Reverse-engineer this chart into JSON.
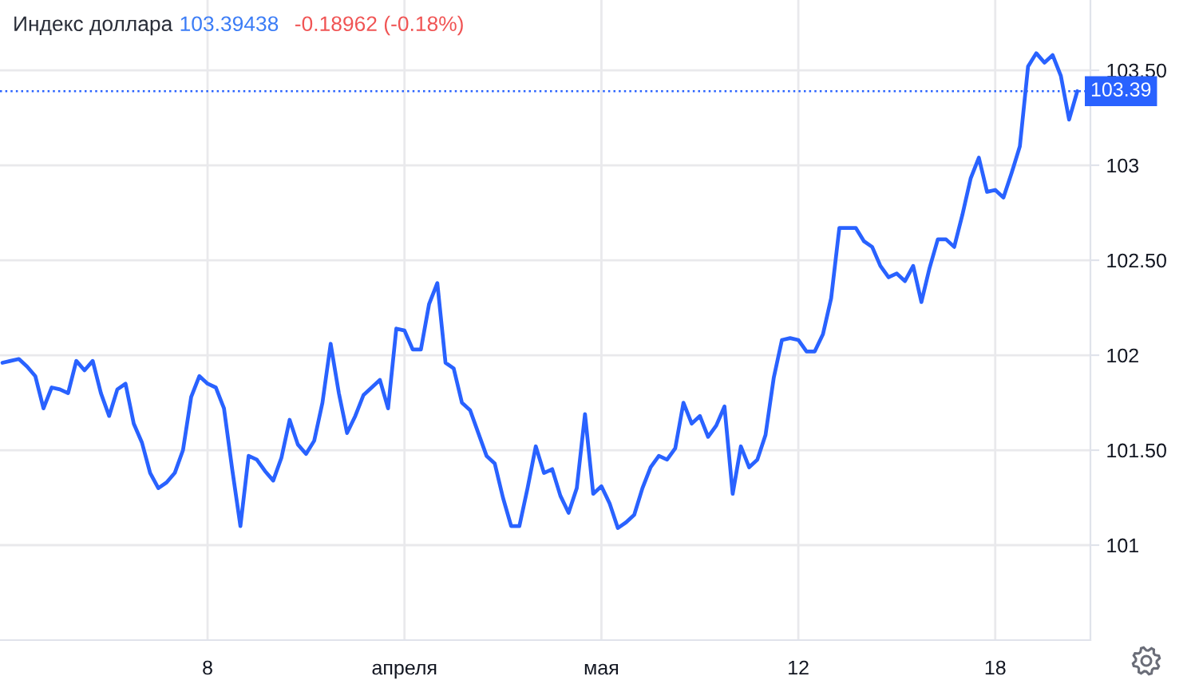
{
  "chart_data": {
    "type": "line",
    "title": "Индекс доллара",
    "annotations": [
      "103.39438",
      "-0.18962 (-0.18%)"
    ],
    "categories": [
      null,
      null,
      null,
      null,
      null,
      null,
      null,
      null,
      null,
      null,
      null,
      null,
      null,
      null,
      null,
      null,
      null,
      null,
      null,
      null,
      null,
      null,
      null,
      null,
      null,
      "8",
      null,
      null,
      null,
      null,
      null,
      null,
      null,
      null,
      null,
      null,
      null,
      null,
      null,
      null,
      null,
      null,
      null,
      null,
      null,
      null,
      null,
      null,
      null,
      "апреля",
      null,
      null,
      null,
      null,
      null,
      null,
      null,
      null,
      null,
      null,
      null,
      null,
      null,
      null,
      null,
      null,
      null,
      null,
      null,
      null,
      null,
      null,
      null,
      "мая",
      null,
      null,
      null,
      null,
      null,
      null,
      null,
      null,
      null,
      null,
      null,
      null,
      null,
      null,
      null,
      null,
      null,
      null,
      null,
      null,
      null,
      null,
      null,
      "12",
      null,
      null,
      null,
      null,
      null,
      null,
      null,
      null,
      null,
      null,
      null,
      null,
      null,
      null,
      null,
      null,
      null,
      null,
      null,
      null,
      null,
      null,
      null,
      "18",
      null,
      null,
      null,
      null,
      null,
      null,
      null,
      null,
      null,
      null
    ],
    "series": [
      {
        "color": "#2962ff",
        "values": [
          101.96,
          101.97,
          101.98,
          101.94,
          101.89,
          101.72,
          101.83,
          101.82,
          101.8,
          101.97,
          101.92,
          101.97,
          101.8,
          101.68,
          101.82,
          101.85,
          101.64,
          101.54,
          101.38,
          101.3,
          101.33,
          101.38,
          101.5,
          101.78,
          101.89,
          101.85,
          101.83,
          101.72,
          101.4,
          101.1,
          101.47,
          101.45,
          101.39,
          101.34,
          101.46,
          101.66,
          101.53,
          101.48,
          101.55,
          101.75,
          102.06,
          101.8,
          101.59,
          101.68,
          101.79,
          101.83,
          101.87,
          101.72,
          102.14,
          102.13,
          102.03,
          102.03,
          102.27,
          102.38,
          101.96,
          101.93,
          101.75,
          101.71,
          101.59,
          101.47,
          101.43,
          101.25,
          101.1,
          101.1,
          101.3,
          101.52,
          101.38,
          101.4,
          101.26,
          101.17,
          101.3,
          101.69,
          101.27,
          101.31,
          101.22,
          101.09,
          101.12,
          101.16,
          101.3,
          101.41,
          101.47,
          101.45,
          101.51,
          101.75,
          101.64,
          101.68,
          101.57,
          101.63,
          101.73,
          101.27,
          101.52,
          101.41,
          101.45,
          101.58,
          101.88,
          102.08,
          102.09,
          102.08,
          102.02,
          102.02,
          102.11,
          102.3,
          102.67,
          102.67,
          102.67,
          102.6,
          102.57,
          102.47,
          102.41,
          102.43,
          102.39,
          102.47,
          102.28,
          102.46,
          102.61,
          102.61,
          102.57,
          102.74,
          102.93,
          103.04,
          102.86,
          102.87,
          102.83,
          102.96,
          103.1,
          103.52,
          103.59,
          103.54,
          103.58,
          103.47,
          103.24,
          103.39
        ]
      }
    ],
    "ylim": [
      100.5,
      103.87
    ],
    "yticks": [
      101,
      {
        "value": 101.5,
        "label": "101.50"
      },
      102,
      {
        "value": 102.5,
        "label": "102.50"
      },
      103,
      {
        "value": 103.5,
        "label": "103.50"
      }
    ],
    "grid": true,
    "marker": "none",
    "line_style": "solid",
    "ref_lines": [
      {
        "axis": "y",
        "value": 103.39,
        "label": "103.39",
        "color": "#2962ff",
        "line_style": "dotted"
      }
    ]
  }
}
